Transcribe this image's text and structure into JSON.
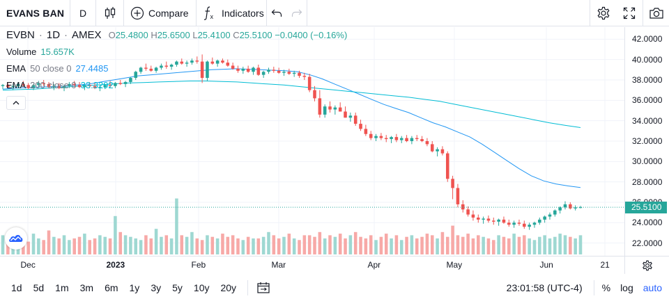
{
  "toolbar": {
    "symbol": "EVANS BAN",
    "interval": "D",
    "compare_label": "Compare",
    "indicators_label": "Indicators",
    "icons": [
      "candles-icon",
      "plus-circle-icon",
      "fx-icon",
      "undo-icon",
      "redo-icon",
      "gear-icon",
      "fullscreen-icon",
      "camera-icon"
    ]
  },
  "legend": {
    "ticker": "EVBN",
    "interval": "1D",
    "exchange": "AMEX",
    "o_label": "O",
    "o": "25.4800",
    "h_label": "H",
    "h": "25.6500",
    "l_label": "L",
    "l": "25.4100",
    "c_label": "C",
    "c": "25.5100",
    "change": "−0.0400 (−0.16%)",
    "volume_label": "Volume",
    "volume_value": "15.657K",
    "ema50_label": "EMA",
    "ema50_params": "50 close 0",
    "ema50_value": "27.4485",
    "ema200_label": "EMA",
    "ema200_params": "200 close 0",
    "ema200_value": "33.3292"
  },
  "price_axis": {
    "labels": [
      "42.0000",
      "40.0000",
      "38.0000",
      "36.0000",
      "34.0000",
      "32.0000",
      "30.0000",
      "28.0000",
      "26.0000",
      "24.0000",
      "22.0000"
    ],
    "last_price": "25.5100"
  },
  "time_axis": {
    "labels": [
      {
        "text": "Dec",
        "bold": false
      },
      {
        "text": "2023",
        "bold": true
      },
      {
        "text": "Feb",
        "bold": false
      },
      {
        "text": "Mar",
        "bold": false
      },
      {
        "text": "Apr",
        "bold": false
      },
      {
        "text": "May",
        "bold": false
      },
      {
        "text": "Jun",
        "bold": false
      },
      {
        "text": "21",
        "bold": false
      }
    ]
  },
  "bottom": {
    "ranges": [
      "1d",
      "5d",
      "1m",
      "3m",
      "6m",
      "1y",
      "3y",
      "5y",
      "10y",
      "20y"
    ],
    "clock": "23:01:58 (UTC-4)",
    "percent_label": "%",
    "log_label": "log",
    "auto_label": "auto"
  },
  "colors": {
    "up": "#26a69a",
    "down": "#ef5350",
    "vol_up": "#9ed8d2",
    "vol_down": "#f7a9a7",
    "ema50": "#2196f3",
    "ema200": "#00bcd4",
    "grid": "#f0f3fa",
    "accent": "#2962ff"
  },
  "chart_data": {
    "type": "candlestick",
    "price_range": [
      21.5,
      42.5
    ],
    "ohlc_series": [
      [
        37.4,
        37.6,
        37.1,
        37.5
      ],
      [
        37.5,
        37.7,
        37.2,
        37.3
      ],
      [
        37.3,
        37.6,
        37.0,
        37.4
      ],
      [
        37.4,
        37.8,
        37.2,
        37.6
      ],
      [
        37.6,
        37.9,
        37.3,
        37.5
      ],
      [
        37.5,
        37.7,
        37.1,
        37.2
      ],
      [
        37.2,
        37.6,
        37.0,
        37.5
      ],
      [
        37.5,
        37.9,
        37.3,
        37.7
      ],
      [
        37.7,
        38.0,
        37.4,
        37.6
      ],
      [
        37.6,
        37.8,
        37.2,
        37.3
      ],
      [
        37.3,
        37.6,
        37.0,
        37.4
      ],
      [
        37.4,
        37.7,
        37.1,
        37.2
      ],
      [
        37.2,
        37.5,
        36.9,
        37.4
      ],
      [
        37.4,
        37.8,
        37.2,
        37.6
      ],
      [
        37.6,
        37.9,
        37.3,
        37.5
      ],
      [
        37.5,
        37.8,
        37.2,
        37.3
      ],
      [
        37.3,
        37.6,
        37.0,
        37.5
      ],
      [
        37.5,
        37.8,
        37.2,
        37.4
      ],
      [
        37.4,
        37.7,
        37.1,
        37.2
      ],
      [
        37.2,
        37.5,
        36.9,
        37.3
      ],
      [
        37.3,
        37.6,
        37.1,
        37.5
      ],
      [
        37.5,
        37.9,
        37.2,
        37.4
      ],
      [
        37.4,
        37.8,
        37.2,
        37.7
      ],
      [
        37.7,
        38.0,
        37.5,
        37.6
      ],
      [
        37.6,
        37.9,
        37.3,
        37.8
      ],
      [
        37.8,
        38.3,
        37.6,
        38.2
      ],
      [
        38.2,
        38.9,
        38.0,
        38.8
      ],
      [
        38.8,
        39.3,
        38.6,
        39.2
      ],
      [
        39.2,
        39.6,
        38.9,
        39.1
      ],
      [
        39.1,
        39.4,
        38.8,
        38.9
      ],
      [
        38.9,
        39.3,
        38.7,
        39.2
      ],
      [
        39.2,
        39.6,
        39.0,
        39.4
      ],
      [
        39.4,
        39.8,
        39.1,
        39.3
      ],
      [
        39.3,
        39.6,
        39.0,
        39.5
      ],
      [
        39.5,
        39.9,
        39.3,
        39.8
      ],
      [
        39.8,
        40.1,
        39.5,
        39.6
      ],
      [
        39.6,
        39.9,
        39.3,
        39.7
      ],
      [
        39.7,
        40.1,
        39.5,
        39.9
      ],
      [
        39.9,
        40.3,
        39.6,
        39.8
      ],
      [
        39.8,
        40.5,
        37.7,
        38.2
      ],
      [
        38.2,
        39.9,
        37.9,
        39.8
      ],
      [
        39.8,
        40.2,
        39.5,
        39.6
      ],
      [
        39.6,
        40.0,
        39.3,
        39.9
      ],
      [
        39.9,
        40.1,
        39.6,
        39.7
      ],
      [
        39.7,
        40.0,
        39.3,
        39.4
      ],
      [
        39.4,
        39.7,
        39.0,
        39.1
      ],
      [
        39.1,
        39.4,
        38.7,
        38.9
      ],
      [
        38.9,
        39.3,
        38.6,
        39.1
      ],
      [
        39.1,
        39.4,
        38.7,
        38.8
      ],
      [
        38.8,
        39.3,
        38.5,
        39.2
      ],
      [
        39.2,
        39.5,
        38.4,
        38.5
      ],
      [
        38.5,
        38.9,
        38.2,
        38.8
      ],
      [
        38.8,
        39.2,
        38.6,
        39.0
      ],
      [
        39.0,
        39.3,
        38.7,
        38.9
      ],
      [
        38.9,
        39.2,
        38.6,
        38.7
      ],
      [
        38.7,
        39.0,
        38.4,
        38.8
      ],
      [
        38.8,
        39.1,
        38.5,
        38.6
      ],
      [
        38.6,
        38.9,
        38.3,
        38.7
      ],
      [
        38.7,
        38.9,
        38.2,
        38.4
      ],
      [
        38.4,
        38.7,
        38.0,
        38.3
      ],
      [
        38.3,
        38.6,
        36.8,
        37.0
      ],
      [
        37.0,
        37.4,
        35.9,
        36.2
      ],
      [
        36.2,
        37.0,
        34.3,
        34.6
      ],
      [
        34.6,
        35.6,
        34.3,
        35.4
      ],
      [
        35.4,
        35.9,
        34.8,
        35.1
      ],
      [
        35.1,
        35.5,
        34.6,
        35.3
      ],
      [
        35.3,
        35.8,
        34.9,
        34.9
      ],
      [
        34.9,
        35.4,
        34.3,
        34.3
      ],
      [
        34.3,
        34.8,
        33.9,
        34.5
      ],
      [
        34.5,
        34.8,
        33.5,
        33.7
      ],
      [
        33.7,
        34.1,
        33.0,
        33.2
      ],
      [
        33.2,
        33.6,
        32.5,
        32.7
      ],
      [
        32.7,
        33.0,
        32.1,
        32.3
      ],
      [
        32.3,
        32.7,
        32.0,
        32.5
      ],
      [
        32.5,
        32.8,
        32.1,
        32.3
      ],
      [
        32.3,
        32.6,
        31.9,
        32.2
      ],
      [
        32.2,
        32.5,
        31.8,
        32.4
      ],
      [
        32.4,
        32.7,
        31.9,
        32.1
      ],
      [
        32.1,
        32.5,
        31.8,
        32.3
      ],
      [
        32.3,
        32.6,
        31.9,
        32.0
      ],
      [
        32.0,
        32.5,
        31.7,
        32.3
      ],
      [
        32.3,
        32.6,
        32.0,
        32.2
      ],
      [
        32.2,
        32.5,
        31.9,
        32.0
      ],
      [
        32.0,
        32.3,
        31.5,
        31.7
      ],
      [
        31.7,
        32.0,
        30.9,
        31.0
      ],
      [
        31.0,
        31.4,
        30.5,
        31.2
      ],
      [
        31.2,
        31.5,
        30.6,
        30.8
      ],
      [
        30.8,
        31.0,
        28.0,
        28.3
      ],
      [
        28.3,
        28.6,
        26.3,
        27.4
      ],
      [
        27.4,
        27.8,
        25.5,
        25.8
      ],
      [
        25.8,
        26.2,
        25.0,
        25.3
      ],
      [
        25.3,
        25.6,
        24.6,
        24.8
      ],
      [
        24.8,
        25.2,
        24.2,
        24.5
      ],
      [
        24.5,
        24.8,
        24.0,
        24.3
      ],
      [
        24.3,
        24.6,
        23.9,
        24.4
      ],
      [
        24.4,
        24.7,
        24.0,
        24.2
      ],
      [
        24.2,
        24.5,
        23.8,
        24.1
      ],
      [
        24.1,
        24.4,
        23.7,
        24.3
      ],
      [
        24.3,
        24.6,
        23.9,
        24.0
      ],
      [
        24.0,
        24.3,
        23.6,
        23.8
      ],
      [
        23.8,
        24.2,
        23.5,
        24.0
      ],
      [
        24.0,
        24.3,
        23.7,
        23.9
      ],
      [
        23.9,
        24.2,
        23.4,
        23.6
      ],
      [
        23.6,
        24.0,
        23.3,
        23.8
      ],
      [
        23.8,
        24.1,
        23.5,
        24.0
      ],
      [
        24.0,
        24.5,
        23.8,
        24.3
      ],
      [
        24.3,
        24.7,
        24.0,
        24.6
      ],
      [
        24.6,
        25.0,
        24.3,
        24.8
      ],
      [
        24.8,
        25.3,
        24.6,
        25.2
      ],
      [
        25.2,
        25.6,
        24.9,
        25.5
      ],
      [
        25.5,
        26.1,
        25.3,
        25.8
      ],
      [
        25.8,
        26.0,
        25.3,
        25.4
      ],
      [
        25.4,
        25.7,
        25.2,
        25.5
      ],
      [
        25.48,
        25.65,
        25.41,
        25.51
      ]
    ],
    "volume_series": [
      12,
      10,
      14,
      9,
      11,
      8,
      13,
      10,
      9,
      15,
      11,
      10,
      12,
      9,
      10,
      11,
      13,
      9,
      10,
      12,
      11,
      10,
      24,
      14,
      12,
      11,
      10,
      9,
      12,
      10,
      16,
      11,
      12,
      10,
      35,
      12,
      11,
      14,
      10,
      9,
      12,
      11,
      10,
      13,
      11,
      12,
      10,
      9,
      11,
      10,
      10,
      11,
      14,
      12,
      10,
      11,
      13,
      10,
      9,
      12,
      12,
      11,
      14,
      10,
      12,
      11,
      13,
      10,
      12,
      14,
      11,
      10,
      12,
      9,
      11,
      13,
      10,
      12,
      9,
      11,
      12,
      10,
      11,
      13,
      12,
      10,
      14,
      11,
      18,
      12,
      11,
      13,
      10,
      12,
      11,
      10,
      9,
      12,
      11,
      10,
      13,
      11,
      12,
      10,
      9,
      11,
      12,
      10,
      11,
      13,
      12,
      11,
      10,
      12
    ],
    "ema50_series": [
      37.1,
      37.2,
      37.25,
      37.3,
      37.35,
      37.4,
      37.5,
      37.6,
      37.8,
      38.0,
      38.2,
      38.4,
      38.5,
      38.6,
      38.7,
      38.8,
      38.9,
      39.0,
      39.05,
      39.1,
      39.05,
      39.0,
      38.95,
      38.9,
      38.8,
      38.5,
      38.1,
      37.6,
      37.1,
      36.6,
      36.1,
      35.6,
      35.2,
      34.8,
      34.3,
      33.8,
      33.4,
      32.9,
      32.4,
      31.7,
      30.9,
      30.1,
      29.3,
      28.6,
      28.1,
      27.8,
      27.6,
      27.45
    ],
    "ema200_series": [
      37.0,
      37.05,
      37.1,
      37.2,
      37.3,
      37.4,
      37.5,
      37.6,
      37.7,
      37.75,
      37.8,
      37.85,
      37.9,
      37.9,
      37.85,
      37.8,
      37.7,
      37.6,
      37.5,
      37.35,
      37.2,
      37.05,
      36.9,
      36.75,
      36.6,
      36.45,
      36.3,
      36.1,
      35.9,
      35.6,
      35.3,
      35.0,
      34.7,
      34.4,
      34.1,
      33.8,
      33.55,
      33.33
    ]
  }
}
